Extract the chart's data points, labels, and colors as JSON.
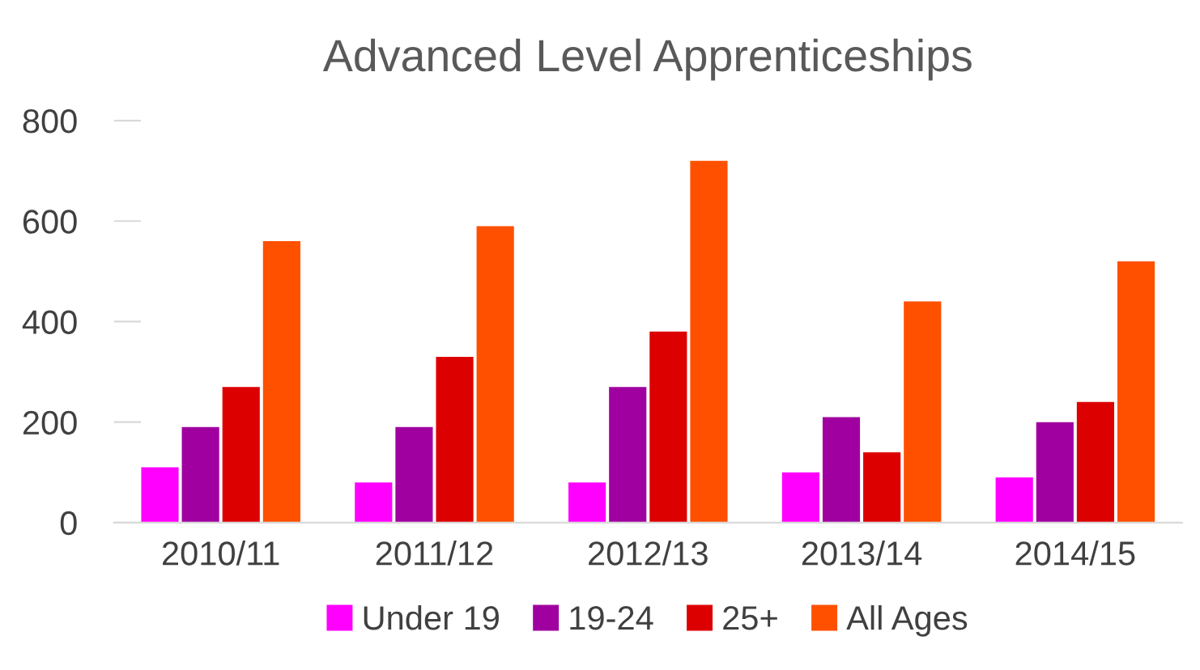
{
  "chart_data": {
    "type": "bar",
    "title": "Advanced Level Apprenticeships",
    "categories": [
      "2010/11",
      "2011/12",
      "2012/13",
      "2013/14",
      "2014/15"
    ],
    "series": [
      {
        "name": "Under 19",
        "color": "#ff00ff",
        "values": [
          110,
          80,
          80,
          100,
          90
        ]
      },
      {
        "name": "19-24",
        "color": "#a000a0",
        "values": [
          190,
          190,
          270,
          210,
          200
        ]
      },
      {
        "name": "25+",
        "color": "#dd0000",
        "values": [
          270,
          330,
          380,
          140,
          240
        ]
      },
      {
        "name": "All Ages",
        "color": "#ff5000",
        "values": [
          560,
          590,
          720,
          440,
          520
        ]
      }
    ],
    "ylim": [
      0,
      800
    ],
    "yticks": [
      0,
      200,
      400,
      600,
      800
    ],
    "grid": false,
    "legend": "bottom"
  }
}
